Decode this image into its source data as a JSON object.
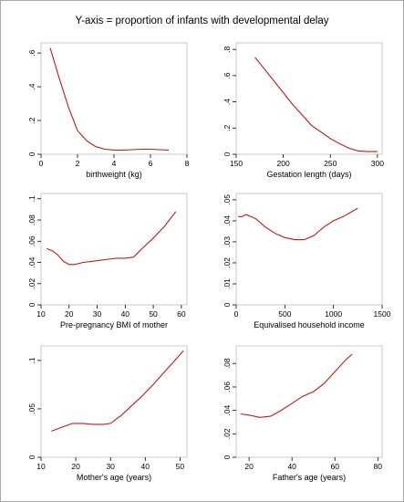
{
  "figure": {
    "title": "Y-axis = proportion of infants with developmental delay"
  },
  "colors": {
    "curve": "#c01a1a",
    "frame": "#bdbdbd"
  },
  "chart_data": [
    {
      "type": "line",
      "xlabel": "birthweight (kg)",
      "ylabel": "",
      "xlim": [
        0,
        8
      ],
      "ylim": [
        0,
        0.66
      ],
      "xticks": [
        0,
        2,
        4,
        6,
        8
      ],
      "xtick_labels": [
        "0",
        "2",
        "4",
        "6",
        "8"
      ],
      "yticks": [
        0,
        0.2,
        0.4,
        0.6
      ],
      "ytick_labels": [
        "0",
        ".2",
        ".4",
        ".6"
      ],
      "grid": false,
      "x": [
        0.5,
        1.0,
        1.5,
        2.0,
        2.5,
        3.0,
        3.5,
        4.0,
        4.5,
        5.0,
        5.5,
        6.0,
        6.5,
        7.0
      ],
      "y": [
        0.63,
        0.45,
        0.28,
        0.14,
        0.08,
        0.045,
        0.03,
        0.025,
        0.025,
        0.027,
        0.03,
        0.03,
        0.027,
        0.025
      ]
    },
    {
      "type": "line",
      "xlabel": "Gestation length (days)",
      "ylabel": "",
      "xlim": [
        150,
        305
      ],
      "ylim": [
        0,
        0.85
      ],
      "xticks": [
        150,
        200,
        250,
        300
      ],
      "xtick_labels": [
        "150",
        "200",
        "250",
        "300"
      ],
      "yticks": [
        0,
        0.2,
        0.4,
        0.6,
        0.8
      ],
      "ytick_labels": [
        "0",
        ".2",
        ".4",
        ".6",
        ".8"
      ],
      "grid": false,
      "x": [
        170,
        180,
        190,
        200,
        210,
        220,
        230,
        240,
        250,
        260,
        270,
        280,
        290,
        300
      ],
      "y": [
        0.74,
        0.65,
        0.56,
        0.47,
        0.38,
        0.3,
        0.22,
        0.17,
        0.12,
        0.08,
        0.045,
        0.025,
        0.02,
        0.02
      ]
    },
    {
      "type": "line",
      "xlabel": "Pre-pregnancy BMI of mother",
      "ylabel": "",
      "xlim": [
        10,
        62
      ],
      "ylim": [
        0,
        0.105
      ],
      "xticks": [
        10,
        20,
        30,
        40,
        50,
        60
      ],
      "xtick_labels": [
        "10",
        "20",
        "30",
        "40",
        "50",
        "60"
      ],
      "yticks": [
        0,
        0.02,
        0.04,
        0.06,
        0.08,
        0.1
      ],
      "ytick_labels": [
        "0",
        ".02",
        ".04",
        ".06",
        ".08",
        ".1"
      ],
      "grid": false,
      "x": [
        12,
        14,
        16,
        18,
        20,
        22,
        25,
        28,
        31,
        34,
        37,
        40,
        43,
        46,
        50,
        54,
        58
      ],
      "y": [
        0.053,
        0.051,
        0.047,
        0.041,
        0.038,
        0.038,
        0.04,
        0.041,
        0.042,
        0.043,
        0.044,
        0.044,
        0.045,
        0.053,
        0.063,
        0.074,
        0.088
      ]
    },
    {
      "type": "line",
      "xlabel": "Equivalised household income",
      "ylabel": "",
      "xlim": [
        0,
        1500
      ],
      "ylim": [
        0,
        0.053
      ],
      "xticks": [
        0,
        500,
        1000,
        1500
      ],
      "xtick_labels": [
        "0",
        "500",
        "1000",
        "1500"
      ],
      "yticks": [
        0,
        0.01,
        0.02,
        0.03,
        0.04,
        0.05
      ],
      "ytick_labels": [
        "0",
        ".01",
        ".02",
        ".03",
        ".04",
        ".05"
      ],
      "grid": false,
      "x": [
        20,
        60,
        100,
        150,
        200,
        300,
        400,
        500,
        600,
        700,
        800,
        900,
        1000,
        1100,
        1250
      ],
      "y": [
        0.042,
        0.042,
        0.043,
        0.042,
        0.041,
        0.037,
        0.034,
        0.032,
        0.031,
        0.031,
        0.033,
        0.037,
        0.04,
        0.042,
        0.046
      ]
    },
    {
      "type": "line",
      "xlabel": "Mother's age (years)",
      "ylabel": "",
      "xlim": [
        10,
        52
      ],
      "ylim": [
        0,
        0.115
      ],
      "xticks": [
        10,
        20,
        30,
        40,
        50
      ],
      "xtick_labels": [
        "10",
        "20",
        "30",
        "40",
        "50"
      ],
      "yticks": [
        0,
        0.05,
        0.1
      ],
      "ytick_labels": [
        "0",
        ".05",
        ".1"
      ],
      "grid": false,
      "x": [
        13,
        16,
        19,
        22,
        25,
        28,
        30,
        33,
        36,
        39,
        42,
        45,
        48,
        51
      ],
      "y": [
        0.027,
        0.031,
        0.035,
        0.035,
        0.034,
        0.034,
        0.035,
        0.043,
        0.053,
        0.063,
        0.074,
        0.086,
        0.098,
        0.11
      ]
    },
    {
      "type": "line",
      "xlabel": "Father's age (years)",
      "ylabel": "",
      "xlim": [
        14,
        82
      ],
      "ylim": [
        0,
        0.095
      ],
      "xticks": [
        20,
        40,
        60,
        80
      ],
      "xtick_labels": [
        "20",
        "40",
        "60",
        "80"
      ],
      "yticks": [
        0,
        0.02,
        0.04,
        0.06,
        0.08
      ],
      "ytick_labels": [
        "0",
        ".02",
        ".04",
        ".06",
        ".08"
      ],
      "grid": false,
      "x": [
        16,
        20,
        25,
        30,
        35,
        40,
        45,
        50,
        55,
        60,
        65,
        68
      ],
      "y": [
        0.037,
        0.036,
        0.034,
        0.035,
        0.04,
        0.046,
        0.052,
        0.056,
        0.063,
        0.073,
        0.083,
        0.088
      ]
    }
  ]
}
